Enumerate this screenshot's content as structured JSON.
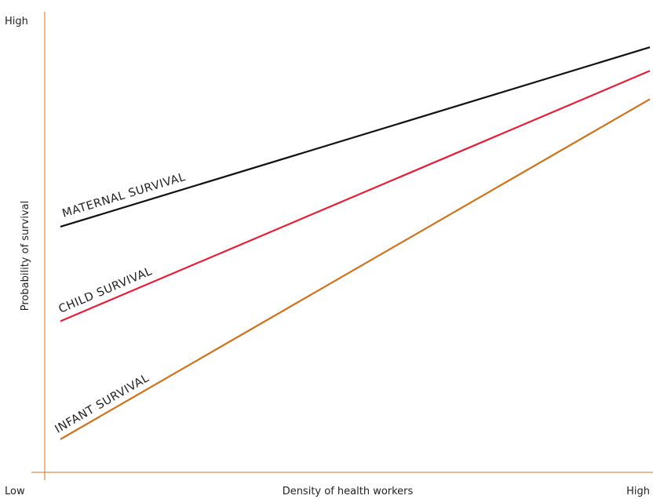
{
  "chart_data": {
    "type": "line",
    "xlabel": "Density of health workers",
    "ylabel": "Probability of survival",
    "x_tick_labels": {
      "low": "Low",
      "high": "High"
    },
    "y_tick_labels": {
      "high": "High"
    },
    "xlim": [
      0,
      1
    ],
    "ylim": [
      0,
      1
    ],
    "grid": false,
    "axis_color": "#c8742a",
    "series": [
      {
        "name": "MATERNAL SURVIVAL",
        "color": "#111111",
        "x": [
          0,
          1
        ],
        "y": [
          0.52,
          0.9
        ]
      },
      {
        "name": "CHILD SURVIVAL",
        "color": "#e0213a",
        "x": [
          0,
          1
        ],
        "y": [
          0.32,
          0.85
        ]
      },
      {
        "name": "INFANT SURVIVAL",
        "color": "#c97420",
        "x": [
          0,
          1
        ],
        "y": [
          0.07,
          0.79
        ]
      }
    ]
  }
}
